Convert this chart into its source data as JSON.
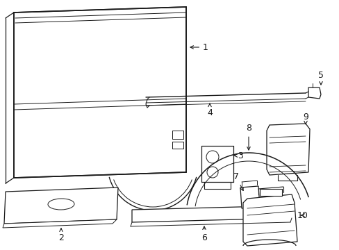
{
  "bg_color": "#ffffff",
  "line_color": "#1a1a1a",
  "label_color": "#1a1a1a",
  "arrow_color": "#1a1a1a",
  "font_size": 9,
  "dpi": 100,
  "figsize": [
    4.89,
    3.6
  ]
}
